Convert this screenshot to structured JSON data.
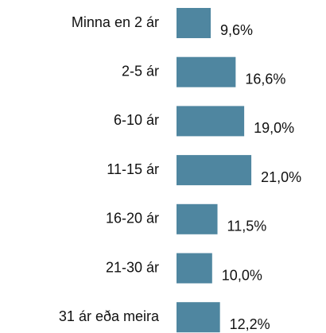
{
  "chart_data": {
    "type": "barh",
    "categories": [
      "Minna en 2 ár",
      "2-5 ár",
      "6-10 ár",
      "11-15 ár",
      "16-20 ár",
      "21-30 ár",
      "31 ár eða meira"
    ],
    "values": [
      9.6,
      16.6,
      19.0,
      21.0,
      11.5,
      10.0,
      12.2
    ],
    "value_labels": [
      "9,6%",
      "16,6%",
      "19,0%",
      "21,0%",
      "11,5%",
      "10,0%",
      "12,2%"
    ],
    "color": "#4f86a0"
  }
}
